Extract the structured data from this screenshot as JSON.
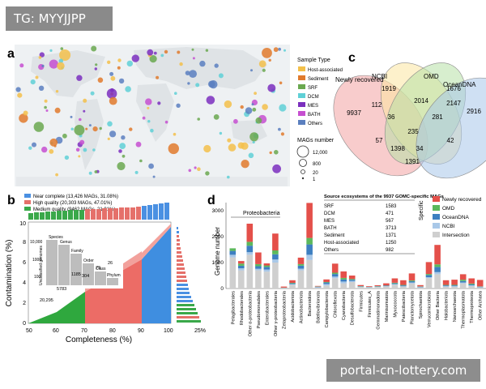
{
  "header": {
    "tag": "TG: MYYJJPP"
  },
  "watermark": {
    "text": "portal-cn-lottery.com"
  },
  "panel_a": {
    "label": "a",
    "legend_title": "Sample Type",
    "legend": [
      {
        "name": "Host-associated",
        "color": "#f3c04a"
      },
      {
        "name": "Sediment",
        "color": "#e07a2c"
      },
      {
        "name": "SRF",
        "color": "#6aa84f"
      },
      {
        "name": "DCM",
        "color": "#5fd0d6"
      },
      {
        "name": "MES",
        "color": "#7b2fbe"
      },
      {
        "name": "BATH",
        "color": "#c64fd0"
      },
      {
        "name": "Others",
        "color": "#5b7fbf"
      }
    ],
    "size_title": "MAGs number",
    "sizes": [
      "12,000",
      "800",
      "20",
      "1"
    ]
  },
  "panel_b": {
    "label": "b",
    "legend": [
      {
        "name": "Near complete (13,426 MAGs, 31.08%)",
        "color": "#4a90e2"
      },
      {
        "name": "High quality (20,303 MAGs, 47.01%)",
        "color": "#e5706a"
      },
      {
        "name": "Medium quality (9462 MAGs, 21.91%)",
        "color": "#3aa84a"
      }
    ],
    "xlabel": "Completeness (%)",
    "ylabel": "Contamination (%)",
    "xticks": [
      "50",
      "60",
      "70",
      "80",
      "90",
      "100"
    ],
    "yticks": [
      "0",
      "2",
      "4",
      "6",
      "8",
      "10"
    ],
    "right_pct": "25%",
    "inset": {
      "ylabel": "Unclassified genomes",
      "yticks": [
        "10,000",
        "1000",
        "100"
      ],
      "categories": [
        "Species",
        "Genus",
        "Family",
        "Order",
        "Class",
        "Phylum"
      ],
      "values": [
        "20,295",
        "5783",
        "1185",
        "304",
        "79",
        "26"
      ]
    }
  },
  "panel_c": {
    "label": "c",
    "sets": [
      "NCBI",
      "OMD",
      "OceanDNA",
      "Newly recovered"
    ],
    "values": [
      "1919",
      "1676",
      "2916",
      "9937",
      "112",
      "2014",
      "2147",
      "36",
      "281",
      "235",
      "57",
      "1398",
      "34",
      "42",
      "1391"
    ]
  },
  "panel_d": {
    "label": "d",
    "ylabel": "Genome number",
    "yticks": [
      "0",
      "1000",
      "2000",
      "3000"
    ],
    "group_label": "Proteobacteria",
    "specific_label": "Specific",
    "legend": [
      {
        "name": "Newly recovered",
        "color": "#e4504a"
      },
      {
        "name": "OMD",
        "color": "#5cb85c"
      },
      {
        "name": "OceanDNA",
        "color": "#3d7fc1"
      },
      {
        "name": "NCBI",
        "color": "#a9c8e8"
      },
      {
        "name": "Intersection",
        "color": "#cfcfcf"
      }
    ],
    "table": {
      "title": "Source ecosystems of the 9937 GOMC-specific MAGs",
      "rows": [
        {
          "name": "SRF",
          "value": "1583"
        },
        {
          "name": "DCM",
          "value": "471"
        },
        {
          "name": "MES",
          "value": "567"
        },
        {
          "name": "BATH",
          "value": "3713"
        },
        {
          "name": "Sediment",
          "value": "1371"
        },
        {
          "name": "Host-associated",
          "value": "1250"
        },
        {
          "name": "Others",
          "value": "982"
        }
      ]
    },
    "chart_data": {
      "type": "bar",
      "ylabel": "Genome number",
      "ylim": [
        0,
        3500
      ],
      "categories": [
        "Pelagibacterales",
        "Rhodobacterales",
        "Other α-proteobacteria",
        "Pseudomonadales",
        "Enterobacterales",
        "Other γ-proteobacteria",
        "Zetaproteobacteria",
        "Acidobacteriota",
        "Actinobacteriota",
        "Bacteroidota",
        "Bdellovibrionota",
        "Campylobacterota",
        "Chloroflexota",
        "Cyanobacteria",
        "Desulfobacterota",
        "Firmicutes",
        "Firmicutes_A",
        "Gemmatimonadota",
        "Marinisomatota",
        "Myxococcota",
        "Patescibacteria",
        "Planctomycetota",
        "Spirochaetota",
        "Verrucomicrobiota",
        "Other Bacteria",
        "Halobacteriota",
        "Nanoarchaeota",
        "Thermoplasmatota",
        "Thermoproteota",
        "Other Archaea"
      ],
      "series": [
        {
          "name": "Intersection",
          "values": [
            1200,
            700,
            1300,
            700,
            650,
            1000,
            20,
            150,
            700,
            1100,
            40,
            120,
            400,
            200,
            250,
            60,
            40,
            60,
            80,
            150,
            80,
            200,
            40,
            400,
            550,
            70,
            70,
            200,
            100,
            40
          ]
        },
        {
          "name": "NCBI",
          "values": [
            100,
            80,
            100,
            60,
            80,
            120,
            5,
            20,
            60,
            200,
            10,
            50,
            60,
            70,
            40,
            10,
            10,
            10,
            10,
            20,
            10,
            30,
            10,
            40,
            80,
            20,
            20,
            30,
            20,
            10
          ]
        },
        {
          "name": "OceanDNA",
          "values": [
            150,
            100,
            250,
            100,
            100,
            200,
            5,
            30,
            120,
            400,
            20,
            60,
            100,
            80,
            50,
            15,
            10,
            15,
            20,
            30,
            30,
            50,
            20,
            80,
            200,
            30,
            30,
            60,
            40,
            20
          ]
        },
        {
          "name": "OMD",
          "values": [
            100,
            80,
            150,
            80,
            60,
            150,
            5,
            20,
            60,
            250,
            10,
            20,
            50,
            60,
            30,
            10,
            5,
            10,
            10,
            20,
            20,
            30,
            10,
            40,
            100,
            20,
            20,
            50,
            30,
            10
          ]
        },
        {
          "name": "Newly recovered",
          "values": [
            0,
            100,
            700,
            450,
            80,
            650,
            40,
            100,
            250,
            1350,
            20,
            100,
            350,
            250,
            130,
            40,
            25,
            30,
            80,
            170,
            180,
            270,
            50,
            460,
            750,
            180,
            200,
            210,
            200,
            250
          ]
        }
      ]
    }
  }
}
